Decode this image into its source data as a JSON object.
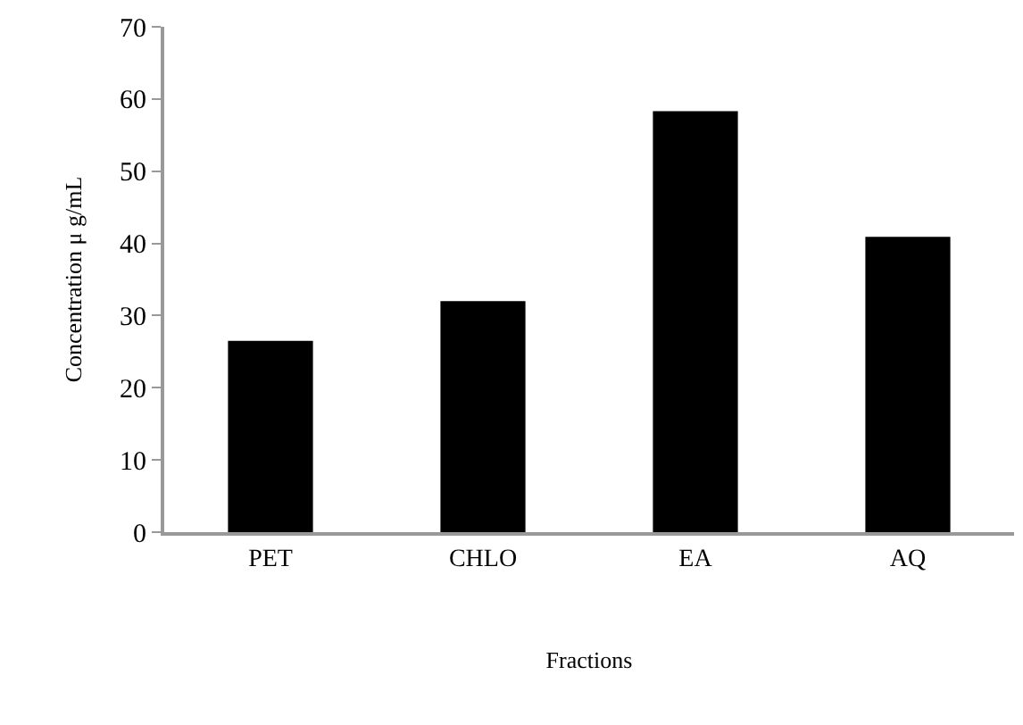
{
  "chart_data": {
    "type": "bar",
    "xlabel": "Fractions",
    "ylabel": "Concentration μ g/mL",
    "categories": [
      "PET",
      "CHLO",
      "EA",
      "AQ"
    ],
    "values": [
      26.5,
      32,
      58.3,
      40.9
    ],
    "color": "#000000",
    "ylim": [
      0,
      70
    ],
    "yticks": [
      0,
      10,
      20,
      30,
      40,
      50,
      60,
      70
    ],
    "legend": false
  }
}
